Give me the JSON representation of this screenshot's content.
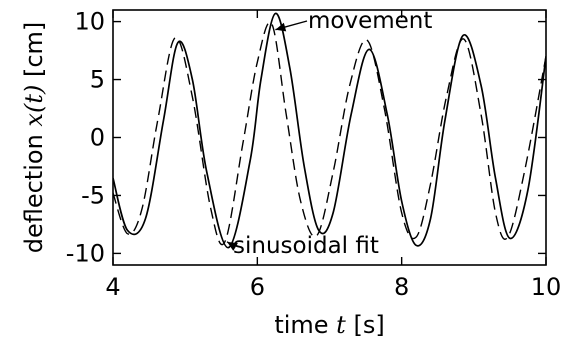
{
  "chart_data": {
    "type": "line",
    "xlabel_text": "time ",
    "xlabel_var": "t",
    "xlabel_unit": " [s]",
    "ylabel_text": "deflection ",
    "ylabel_var": "x(t)",
    "ylabel_unit": " [cm]",
    "xlim": [
      4,
      10
    ],
    "ylim": [
      -11,
      11
    ],
    "xticks": [
      4,
      6,
      8,
      10
    ],
    "xtick_labels": [
      "4",
      "6",
      "8",
      "10"
    ],
    "yticks": [
      10,
      5,
      0,
      -5,
      -10
    ],
    "ytick_labels": [
      "10",
      "5",
      "0",
      "-5",
      "-10"
    ],
    "grid": false,
    "annotations": [
      {
        "text": "movement",
        "target_series": "movement",
        "x": 6.25,
        "y": 9.3
      },
      {
        "text": "sinusoidal fit",
        "target_series": "sinusoidal fit",
        "x": 5.58,
        "y": -9.0
      }
    ],
    "series": [
      {
        "name": "movement",
        "style": "solid",
        "color": "#000000",
        "x": [
          4.0,
          4.2,
          4.45,
          4.7,
          4.9,
          5.1,
          5.3,
          5.6,
          5.9,
          6.05,
          6.25,
          6.45,
          6.65,
          6.85,
          7.05,
          7.3,
          7.55,
          7.8,
          8.0,
          8.2,
          8.4,
          8.6,
          8.85,
          9.1,
          9.3,
          9.5,
          9.75,
          10.0
        ],
        "y": [
          -3.5,
          -8.0,
          -7.0,
          1.5,
          8.2,
          5.0,
          -3.0,
          -9.5,
          -2.0,
          5.0,
          10.7,
          6.0,
          -2.5,
          -8.0,
          -6.5,
          2.0,
          7.6,
          2.0,
          -5.5,
          -9.3,
          -7.0,
          1.5,
          8.8,
          4.5,
          -3.5,
          -8.7,
          -4.5,
          7.0
        ]
      },
      {
        "name": "sinusoidal fit",
        "style": "dashed",
        "color": "#000000",
        "x": [
          4.0,
          4.2,
          4.4,
          4.62,
          4.86,
          5.1,
          5.35,
          5.55,
          5.8,
          6.0,
          6.2,
          6.4,
          6.6,
          6.82,
          7.05,
          7.28,
          7.52,
          7.76,
          8.0,
          8.2,
          8.4,
          8.62,
          8.86,
          9.1,
          9.3,
          9.47,
          9.7,
          10.0
        ],
        "y": [
          -4.8,
          -8.3,
          -6.2,
          1.5,
          8.6,
          3.5,
          -6.0,
          -9.0,
          -0.5,
          6.5,
          9.8,
          2.0,
          -5.5,
          -8.5,
          -3.0,
          4.5,
          8.4,
          2.5,
          -6.5,
          -8.6,
          -4.0,
          3.5,
          8.5,
          2.0,
          -6.5,
          -8.6,
          -3.0,
          7.0
        ]
      }
    ]
  }
}
